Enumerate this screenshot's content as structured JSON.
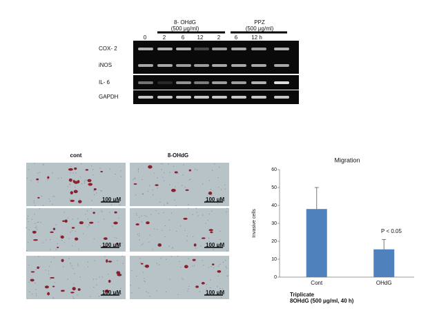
{
  "blot": {
    "group_labels": [
      {
        "name": "8- OHdG",
        "dose": "(500 μg/ml)"
      },
      {
        "name": "PPZ",
        "dose": "(500 μg/ml)"
      }
    ],
    "lane_labels": [
      "0",
      "2",
      "6",
      "12",
      "2",
      "6",
      "12 h"
    ],
    "row_labels": [
      "COX- 2",
      "iNOS",
      "IL- 6",
      "GAPDH"
    ]
  },
  "micrographs": {
    "column_labels": [
      "cont",
      "8-OHdG"
    ],
    "panels": [
      {
        "scale_label": "100 μM"
      },
      {
        "scale_label": "100 μM"
      },
      {
        "scale_label": "100 μM"
      },
      {
        "scale_label": "100 μM"
      },
      {
        "scale_label": "100 μM"
      },
      {
        "scale_label": "100 μM"
      }
    ]
  },
  "chart_data": {
    "type": "bar",
    "title": "Migration",
    "y_label": "Invasive cells",
    "categories": [
      "Cont",
      "OHdG"
    ],
    "values": [
      38,
      15.5
    ],
    "errors": [
      12,
      5.5
    ],
    "color": "#4f81bd",
    "ylim": [
      0,
      60
    ],
    "yticks": [
      0,
      10,
      20,
      30,
      40,
      50,
      60
    ],
    "annotation": "P < 0.05",
    "footnotes": [
      "Triplicate",
      "8OHdG (500 μg/ml, 40 h)"
    ]
  }
}
